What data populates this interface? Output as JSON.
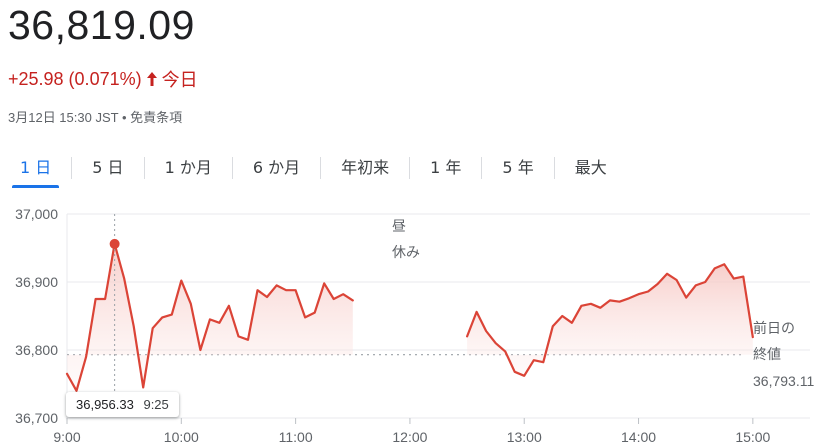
{
  "quote": {
    "price": "36,819.09",
    "change": "+25.98 (0.071%)",
    "period": "今日",
    "timestamp": "3月12日 15:30 JST",
    "disclaimer": "免責条項",
    "separator": "•"
  },
  "tabs": [
    {
      "label": "1 日",
      "active": true
    },
    {
      "label": "5 日",
      "active": false
    },
    {
      "label": "1 か月",
      "active": false
    },
    {
      "label": "6 か月",
      "active": false
    },
    {
      "label": "年初来",
      "active": false
    },
    {
      "label": "1 年",
      "active": false
    },
    {
      "label": "5 年",
      "active": false
    },
    {
      "label": "最大",
      "active": false
    }
  ],
  "colors": {
    "line": "#db4437",
    "fill_top": "#f6c9c5",
    "grid": "#e8eaed",
    "prev_close_line": "#9aa0a6",
    "accent": "#1a73e8"
  },
  "chart_data": {
    "type": "area",
    "ylim": [
      36700,
      37000
    ],
    "yticks": [
      36700,
      36800,
      36900,
      37000
    ],
    "ytick_labels": [
      "36,700",
      "36,800",
      "36,900",
      "37,000"
    ],
    "xticks": [
      "9:00",
      "10:00",
      "11:00",
      "12:00",
      "13:00",
      "14:00",
      "15:00"
    ],
    "session_am": {
      "x": [
        "9:00",
        "9:05",
        "9:10",
        "9:15",
        "9:20",
        "9:25",
        "9:30",
        "9:35",
        "9:40",
        "9:45",
        "9:50",
        "9:55",
        "10:00",
        "10:05",
        "10:10",
        "10:15",
        "10:20",
        "10:25",
        "10:30",
        "10:35",
        "10:40",
        "10:45",
        "10:50",
        "10:55",
        "11:00",
        "11:05",
        "11:10",
        "11:15",
        "11:20",
        "11:25",
        "11:30"
      ],
      "y": [
        36765,
        36740,
        36790,
        36875,
        36875,
        36956,
        36905,
        36835,
        36745,
        36832,
        36848,
        36852,
        36902,
        36868,
        36800,
        36845,
        36840,
        36865,
        36820,
        36815,
        36888,
        36878,
        36895,
        36888,
        36888,
        36848,
        36855,
        36898,
        36875,
        36882,
        36873
      ]
    },
    "lunch_break_label": [
      "昼",
      "休み"
    ],
    "session_pm": {
      "x": [
        "12:30",
        "12:35",
        "12:40",
        "12:45",
        "12:50",
        "12:55",
        "13:00",
        "13:05",
        "13:10",
        "13:15",
        "13:20",
        "13:25",
        "13:30",
        "13:35",
        "13:40",
        "13:45",
        "13:50",
        "13:55",
        "14:00",
        "14:05",
        "14:10",
        "14:15",
        "14:20",
        "14:25",
        "14:30",
        "14:35",
        "14:40",
        "14:45",
        "14:50",
        "14:55",
        "15:00"
      ],
      "y": [
        36820,
        36856,
        36828,
        36810,
        36798,
        36768,
        36762,
        36785,
        36782,
        36835,
        36850,
        36840,
        36865,
        36868,
        36862,
        36873,
        36871,
        36876,
        36882,
        36886,
        36897,
        36912,
        36903,
        36877,
        36895,
        36900,
        36920,
        36926,
        36905,
        36908,
        36819
      ]
    },
    "previous_close": {
      "value": 36793.11,
      "label_lines": [
        "前日の",
        "終値"
      ],
      "value_label": "36,793.11"
    },
    "tooltip": {
      "value": "36,956.33",
      "time": "9:25"
    },
    "highlight_time": "9:25"
  }
}
